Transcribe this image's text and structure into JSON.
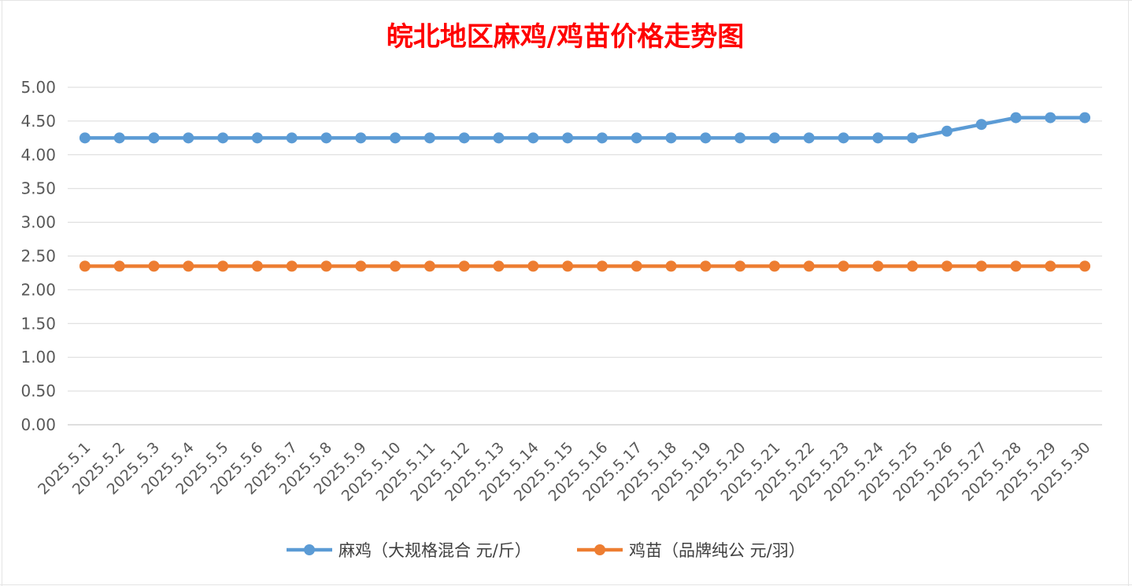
{
  "chart_data": {
    "type": "line",
    "title": "皖北地区麻鸡/鸡苗价格走势图",
    "xlabel": "",
    "ylabel": "",
    "ylim": [
      0,
      5
    ],
    "ytick_labels": [
      "0.00",
      "0.50",
      "1.00",
      "1.50",
      "2.00",
      "2.50",
      "3.00",
      "3.50",
      "4.00",
      "4.50",
      "5.00"
    ],
    "grid": "horizontal",
    "legend_position": "bottom",
    "categories": [
      "2025.5.1",
      "2025.5.2",
      "2025.5.3",
      "2025.5.4",
      "2025.5.5",
      "2025.5.6",
      "2025.5.7",
      "2025.5.8",
      "2025.5.9",
      "2025.5.10",
      "2025.5.11",
      "2025.5.12",
      "2025.5.13",
      "2025.5.14",
      "2025.5.15",
      "2025.5.16",
      "2025.5.17",
      "2025.5.18",
      "2025.5.19",
      "2025.5.20",
      "2025.5.21",
      "2025.5.22",
      "2025.5.23",
      "2025.5.24",
      "2025.5.25",
      "2025.5.26",
      "2025.5.27",
      "2025.5.28",
      "2025.5.29",
      "2025.5.30"
    ],
    "series": [
      {
        "name": "麻鸡（大规格混合 元/斤）",
        "color": "#5b9bd5",
        "values": [
          4.25,
          4.25,
          4.25,
          4.25,
          4.25,
          4.25,
          4.25,
          4.25,
          4.25,
          4.25,
          4.25,
          4.25,
          4.25,
          4.25,
          4.25,
          4.25,
          4.25,
          4.25,
          4.25,
          4.25,
          4.25,
          4.25,
          4.25,
          4.25,
          4.25,
          4.35,
          4.45,
          4.55,
          4.55,
          4.55
        ]
      },
      {
        "name": "鸡苗（品牌纯公 元/羽）",
        "color": "#ed7d31",
        "values": [
          2.35,
          2.35,
          2.35,
          2.35,
          2.35,
          2.35,
          2.35,
          2.35,
          2.35,
          2.35,
          2.35,
          2.35,
          2.35,
          2.35,
          2.35,
          2.35,
          2.35,
          2.35,
          2.35,
          2.35,
          2.35,
          2.35,
          2.35,
          2.35,
          2.35,
          2.35,
          2.35,
          2.35,
          2.35,
          2.35
        ]
      }
    ]
  }
}
